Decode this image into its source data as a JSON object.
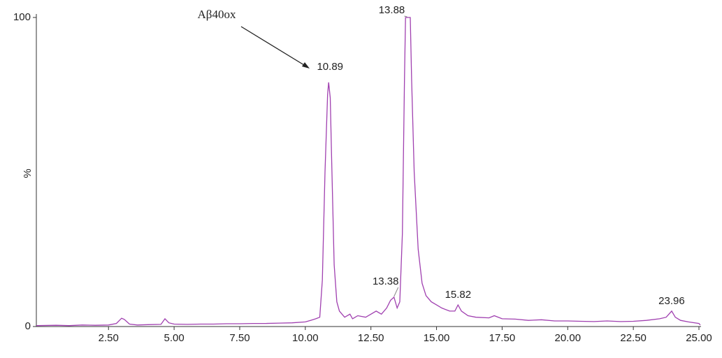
{
  "chart_data": {
    "type": "line",
    "ylabel": "%",
    "color": "#a040b0",
    "xlim": [
      -0.25,
      25.08
    ],
    "ylim": [
      0,
      100
    ],
    "xticks": [
      {
        "value": 2.5,
        "label": "2.50"
      },
      {
        "value": 5,
        "label": "5.00"
      },
      {
        "value": 7.5,
        "label": "7.50"
      },
      {
        "value": 10,
        "label": "10.00"
      },
      {
        "value": 12.5,
        "label": "12.50"
      },
      {
        "value": 15,
        "label": "15.00"
      },
      {
        "value": 17.5,
        "label": "17.50"
      },
      {
        "value": 20,
        "label": "20.00"
      },
      {
        "value": 22.5,
        "label": "22.50"
      },
      {
        "value": 25,
        "label": "25.00"
      }
    ],
    "yticks": [
      0,
      100
    ],
    "x": [
      -0.25,
      0.5,
      1.0,
      1.5,
      2.0,
      2.5,
      2.8,
      3.0,
      3.1,
      3.3,
      3.6,
      4.0,
      4.5,
      4.65,
      4.8,
      5.0,
      5.5,
      6.0,
      6.5,
      7.0,
      7.5,
      8.0,
      8.5,
      9.0,
      9.5,
      10.0,
      10.2,
      10.4,
      10.55,
      10.65,
      10.75,
      10.85,
      10.89,
      10.95,
      11.0,
      11.1,
      11.2,
      11.3,
      11.5,
      11.7,
      11.8,
      12.0,
      12.3,
      12.5,
      12.7,
      12.9,
      13.1,
      13.25,
      13.38,
      13.5,
      13.6,
      13.7,
      13.78,
      13.82,
      13.88,
      14.0,
      14.05,
      14.15,
      14.3,
      14.45,
      14.6,
      14.8,
      15.0,
      15.2,
      15.5,
      15.7,
      15.82,
      15.95,
      16.2,
      16.5,
      17.0,
      17.2,
      17.5,
      18.0,
      18.5,
      19.0,
      19.5,
      20.0,
      20.5,
      21.0,
      21.5,
      22.0,
      22.5,
      23.0,
      23.5,
      23.75,
      23.96,
      24.1,
      24.3,
      24.6,
      25.0,
      25.05
    ],
    "values": [
      0.3,
      0.4,
      0.3,
      0.5,
      0.4,
      0.5,
      1,
      2.7,
      2.3,
      0.8,
      0.5,
      0.6,
      0.7,
      2.5,
      1.2,
      0.8,
      0.7,
      0.8,
      0.8,
      0.9,
      0.9,
      1.0,
      1.0,
      1.1,
      1.2,
      1.5,
      2,
      2.5,
      3,
      15,
      50,
      75,
      79,
      74,
      55,
      20,
      8,
      5,
      3,
      4,
      2.5,
      3.5,
      3,
      4,
      5,
      4,
      6,
      8.5,
      9.5,
      6,
      8,
      30,
      80,
      100,
      100,
      100,
      80,
      50,
      25,
      14,
      10,
      8,
      7,
      6,
      5,
      5,
      7,
      5,
      3.5,
      3,
      2.8,
      3.5,
      2.5,
      2.4,
      2,
      2.2,
      1.8,
      1.8,
      1.7,
      1.6,
      1.8,
      1.6,
      1.7,
      2,
      2.5,
      3,
      5,
      3,
      2,
      1.5,
      1,
      0.5
    ],
    "peaks": [
      {
        "x": 10.89,
        "y": 79
      },
      {
        "x": 13.88,
        "y": 100
      },
      {
        "x": 13.38,
        "y": 9.5
      },
      {
        "x": 15.82,
        "y": 7
      },
      {
        "x": 23.96,
        "y": 5
      }
    ],
    "annotation": "Aβ40ox"
  }
}
